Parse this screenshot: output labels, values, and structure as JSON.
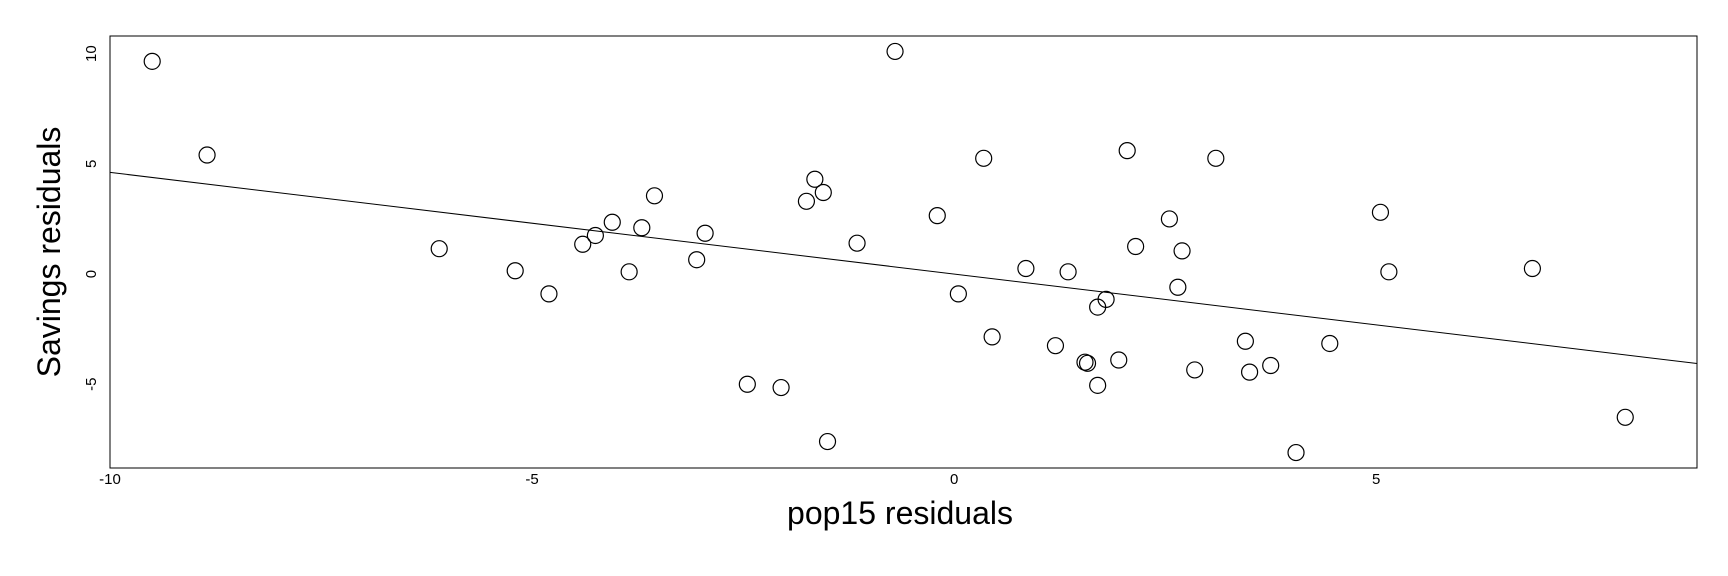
{
  "chart_data": {
    "type": "scatter",
    "title": "",
    "xlabel": "pop15 residuals",
    "ylabel": "Savings residuals",
    "xlim": [
      -10,
      8.8
    ],
    "ylim": [
      -8.8,
      10.8
    ],
    "xticks": [
      -10,
      -5,
      0,
      5
    ],
    "xtick_labels": [
      "-10",
      "-5",
      "0",
      "5"
    ],
    "yticks": [
      -5,
      0,
      5,
      10
    ],
    "ytick_labels": [
      "-5",
      "0",
      "5",
      "10"
    ],
    "grid": false,
    "fit_line": {
      "intercept": 0.0,
      "slope": -0.4612
    },
    "points": [
      {
        "x": -9.5,
        "y": 9.65
      },
      {
        "x": -8.85,
        "y": 5.4
      },
      {
        "x": -6.1,
        "y": 1.15
      },
      {
        "x": -5.2,
        "y": 0.15
      },
      {
        "x": -4.8,
        "y": -0.9
      },
      {
        "x": -4.4,
        "y": 1.35
      },
      {
        "x": -4.25,
        "y": 1.75
      },
      {
        "x": -4.05,
        "y": 2.35
      },
      {
        "x": -3.85,
        "y": 0.1
      },
      {
        "x": -3.7,
        "y": 2.1
      },
      {
        "x": -3.55,
        "y": 3.55
      },
      {
        "x": -3.05,
        "y": 0.65
      },
      {
        "x": -2.95,
        "y": 1.85
      },
      {
        "x": -2.45,
        "y": -5.0
      },
      {
        "x": -2.05,
        "y": -5.15
      },
      {
        "x": -1.75,
        "y": 3.3
      },
      {
        "x": -1.65,
        "y": 4.3
      },
      {
        "x": -1.55,
        "y": 3.7
      },
      {
        "x": -1.5,
        "y": -7.6
      },
      {
        "x": -1.15,
        "y": 1.4
      },
      {
        "x": -0.7,
        "y": 10.1
      },
      {
        "x": -0.2,
        "y": 2.65
      },
      {
        "x": 0.05,
        "y": -0.9
      },
      {
        "x": 0.35,
        "y": 5.25
      },
      {
        "x": 0.45,
        "y": -2.85
      },
      {
        "x": 0.85,
        "y": 0.25
      },
      {
        "x": 1.2,
        "y": -3.25
      },
      {
        "x": 1.35,
        "y": 0.1
      },
      {
        "x": 1.55,
        "y": -4.0
      },
      {
        "x": 1.58,
        "y": -4.05
      },
      {
        "x": 1.7,
        "y": -1.5
      },
      {
        "x": 1.7,
        "y": -5.05
      },
      {
        "x": 1.8,
        "y": -1.15
      },
      {
        "x": 1.95,
        "y": -3.9
      },
      {
        "x": 2.05,
        "y": 5.6
      },
      {
        "x": 2.15,
        "y": 1.25
      },
      {
        "x": 2.55,
        "y": 2.5
      },
      {
        "x": 2.65,
        "y": -0.6
      },
      {
        "x": 2.7,
        "y": 1.05
      },
      {
        "x": 2.85,
        "y": -4.35
      },
      {
        "x": 3.1,
        "y": 5.25
      },
      {
        "x": 3.45,
        "y": -3.05
      },
      {
        "x": 3.5,
        "y": -4.45
      },
      {
        "x": 3.75,
        "y": -4.15
      },
      {
        "x": 4.05,
        "y": -8.1
      },
      {
        "x": 4.45,
        "y": -3.15
      },
      {
        "x": 5.05,
        "y": 2.8
      },
      {
        "x": 5.15,
        "y": 0.1
      },
      {
        "x": 6.85,
        "y": 0.25
      },
      {
        "x": 7.95,
        "y": -6.5
      }
    ]
  }
}
